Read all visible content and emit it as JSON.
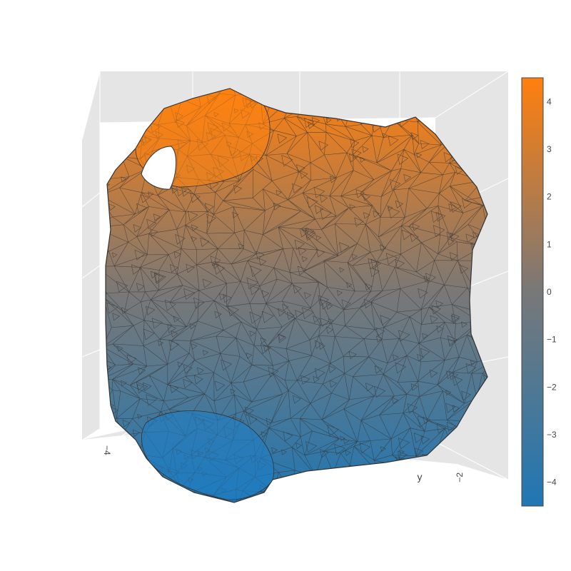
{
  "chart_data": {
    "type": "mesh3d",
    "title": "",
    "scene": {
      "background": "#e5e5e5",
      "grid": true,
      "axes": {
        "y": {
          "title": "y",
          "tick_labels": [
            "−4",
            "−2"
          ]
        }
      }
    },
    "surface": {
      "shape": "blobby cube-like closed surface with circular holes at top-left and bottom-left",
      "color_by": "z",
      "intensity_range": [
        -4.5,
        4.5
      ],
      "wireframe_color": "#333333"
    },
    "colorbar": {
      "colorscale": [
        [
          0,
          "#1f77b4"
        ],
        [
          0.5,
          "#787878"
        ],
        [
          1,
          "#ff7f0e"
        ]
      ],
      "range": [
        -4.5,
        4.5
      ],
      "ticks": [
        4,
        3,
        2,
        1,
        0,
        -1,
        -2,
        -3,
        -4
      ],
      "tick_labels": [
        "4",
        "3",
        "2",
        "1",
        "0",
        "−1",
        "−2",
        "−3",
        "−4"
      ]
    }
  }
}
